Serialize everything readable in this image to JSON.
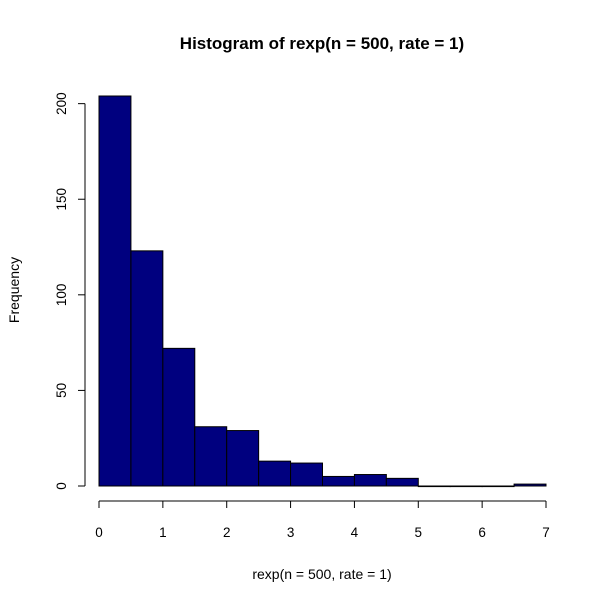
{
  "chart_data": {
    "type": "bar",
    "title": "Histogram of rexp(n = 500, rate = 1)",
    "xlabel": "rexp(n = 500, rate = 1)",
    "ylabel": "Frequency",
    "bin_edges": [
      0,
      0.5,
      1,
      1.5,
      2,
      2.5,
      3,
      3.5,
      4,
      4.5,
      5,
      5.5,
      6,
      6.5,
      7
    ],
    "values": [
      204,
      123,
      72,
      31,
      29,
      13,
      12,
      5,
      6,
      4,
      0,
      0,
      0,
      1
    ],
    "xlim": [
      0,
      7
    ],
    "ylim": [
      0,
      204
    ],
    "x_ticks": [
      0,
      1,
      2,
      3,
      4,
      5,
      6,
      7
    ],
    "y_ticks": [
      0,
      50,
      100,
      150,
      200
    ],
    "bar_color": "#00007f",
    "bar_border_color": "#000000",
    "grid": false
  }
}
